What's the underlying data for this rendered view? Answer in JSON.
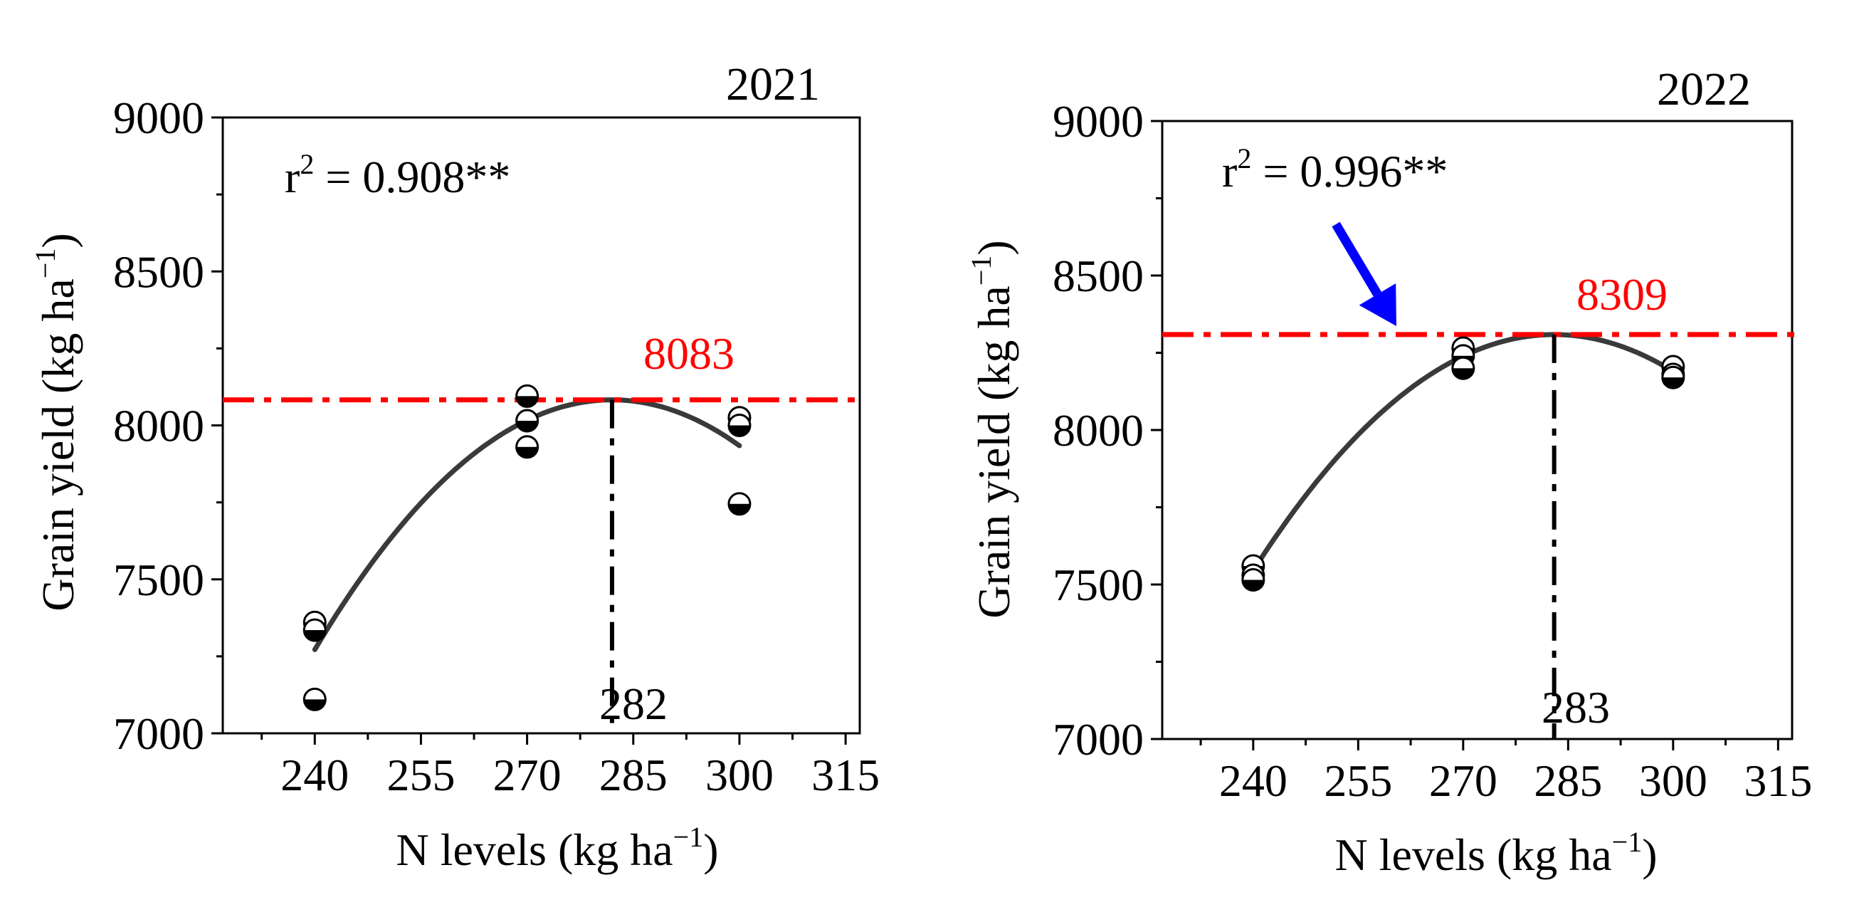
{
  "colors": {
    "axis": "#000000",
    "fit_curve": "#3a3a3a",
    "optimum_line": "#ff0000",
    "optimum_label": "#ff0000",
    "arrow": "#0000ff",
    "marker_fill": "#000000",
    "marker_open": "#ffffff"
  },
  "chart_data": [
    {
      "type": "scatter",
      "panel_title": "2021",
      "xlabel": "N levels (kg ha",
      "xlabel_sup": "−1",
      "xlabel_close": ")",
      "ylabel": "Grain yield (kg ha",
      "ylabel_sup": "−1",
      "ylabel_close": ")",
      "xlim": [
        227,
        317
      ],
      "ylim": [
        7000,
        9000
      ],
      "xticks": [
        240,
        255,
        270,
        285,
        300,
        315
      ],
      "yticks": [
        7000,
        7500,
        8000,
        8500,
        9000
      ],
      "points": [
        {
          "x": 240,
          "y": 7360
        },
        {
          "x": 240,
          "y": 7335
        },
        {
          "x": 240,
          "y": 7110
        },
        {
          "x": 270,
          "y": 8095
        },
        {
          "x": 270,
          "y": 8015
        },
        {
          "x": 270,
          "y": 7930
        },
        {
          "x": 300,
          "y": 8025
        },
        {
          "x": 300,
          "y": 8000
        },
        {
          "x": 300,
          "y": 7745
        }
      ],
      "fit": {
        "type": "quadratic",
        "x_range": [
          240,
          300
        ],
        "vertex_x": 282,
        "vertex_y": 8083,
        "y_at_240": 7272
      },
      "r2_label": "r",
      "r2_sup": "2",
      "r2_value": " = 0.908**",
      "optimum_yield": 8083,
      "optimum_yield_label": "8083",
      "optimum_n": 282,
      "optimum_n_label": "282",
      "arrow": false
    },
    {
      "type": "scatter",
      "panel_title": "2022",
      "xlabel": "N levels (kg ha",
      "xlabel_sup": "−1",
      "xlabel_close": ")",
      "ylabel": "Grain yield (kg ha",
      "ylabel_sup": "−1",
      "ylabel_close": ")",
      "xlim": [
        227,
        317
      ],
      "ylim": [
        7000,
        9000
      ],
      "xticks": [
        240,
        255,
        270,
        285,
        300,
        315
      ],
      "yticks": [
        7000,
        7500,
        8000,
        8500,
        9000
      ],
      "points": [
        {
          "x": 240,
          "y": 7560
        },
        {
          "x": 240,
          "y": 7530
        },
        {
          "x": 240,
          "y": 7515
        },
        {
          "x": 270,
          "y": 8265
        },
        {
          "x": 270,
          "y": 8240
        },
        {
          "x": 270,
          "y": 8200
        },
        {
          "x": 300,
          "y": 8205
        },
        {
          "x": 300,
          "y": 8180
        },
        {
          "x": 300,
          "y": 8170
        }
      ],
      "fit": {
        "type": "quadratic",
        "x_range": [
          240,
          300
        ],
        "vertex_x": 283,
        "vertex_y": 8309,
        "y_at_240": 7545
      },
      "r2_label": "r",
      "r2_sup": "2",
      "r2_value": " = 0.996**",
      "optimum_yield": 8309,
      "optimum_yield_label": "8309",
      "optimum_n": 283,
      "optimum_n_label": "283",
      "arrow": true
    }
  ]
}
